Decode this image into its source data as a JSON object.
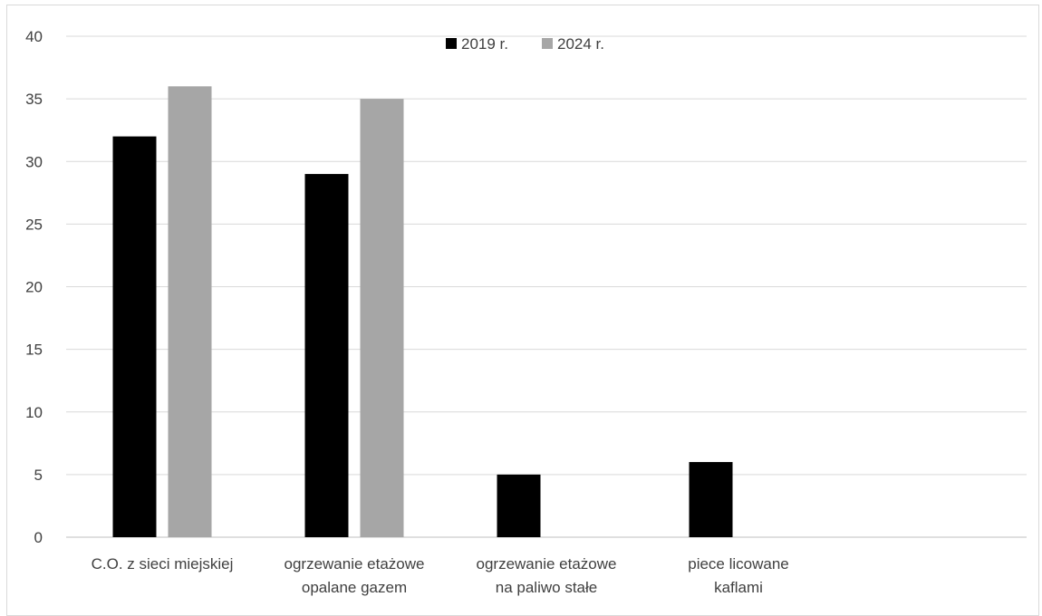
{
  "chart_data": {
    "type": "bar",
    "title": "",
    "xlabel": "",
    "ylabel": "",
    "ylim": [
      0,
      40
    ],
    "y_ticks": [
      0,
      5,
      10,
      15,
      20,
      25,
      30,
      35,
      40
    ],
    "grid": true,
    "legend_position": "top-center",
    "categories": [
      [
        "C.O. z sieci miejskiej"
      ],
      [
        "ogrzewanie etażowe",
        "opalane gazem"
      ],
      [
        "ogrzewanie etażowe",
        "na paliwo stałe"
      ],
      [
        "piece licowane",
        "kaflami"
      ],
      [
        ""
      ]
    ],
    "series": [
      {
        "name": "2019 r.",
        "color": "#000000",
        "values": [
          32,
          29,
          5,
          6,
          null
        ]
      },
      {
        "name": "2024 r.",
        "color": "#a6a6a6",
        "values": [
          36,
          35,
          null,
          null,
          null
        ]
      }
    ]
  }
}
